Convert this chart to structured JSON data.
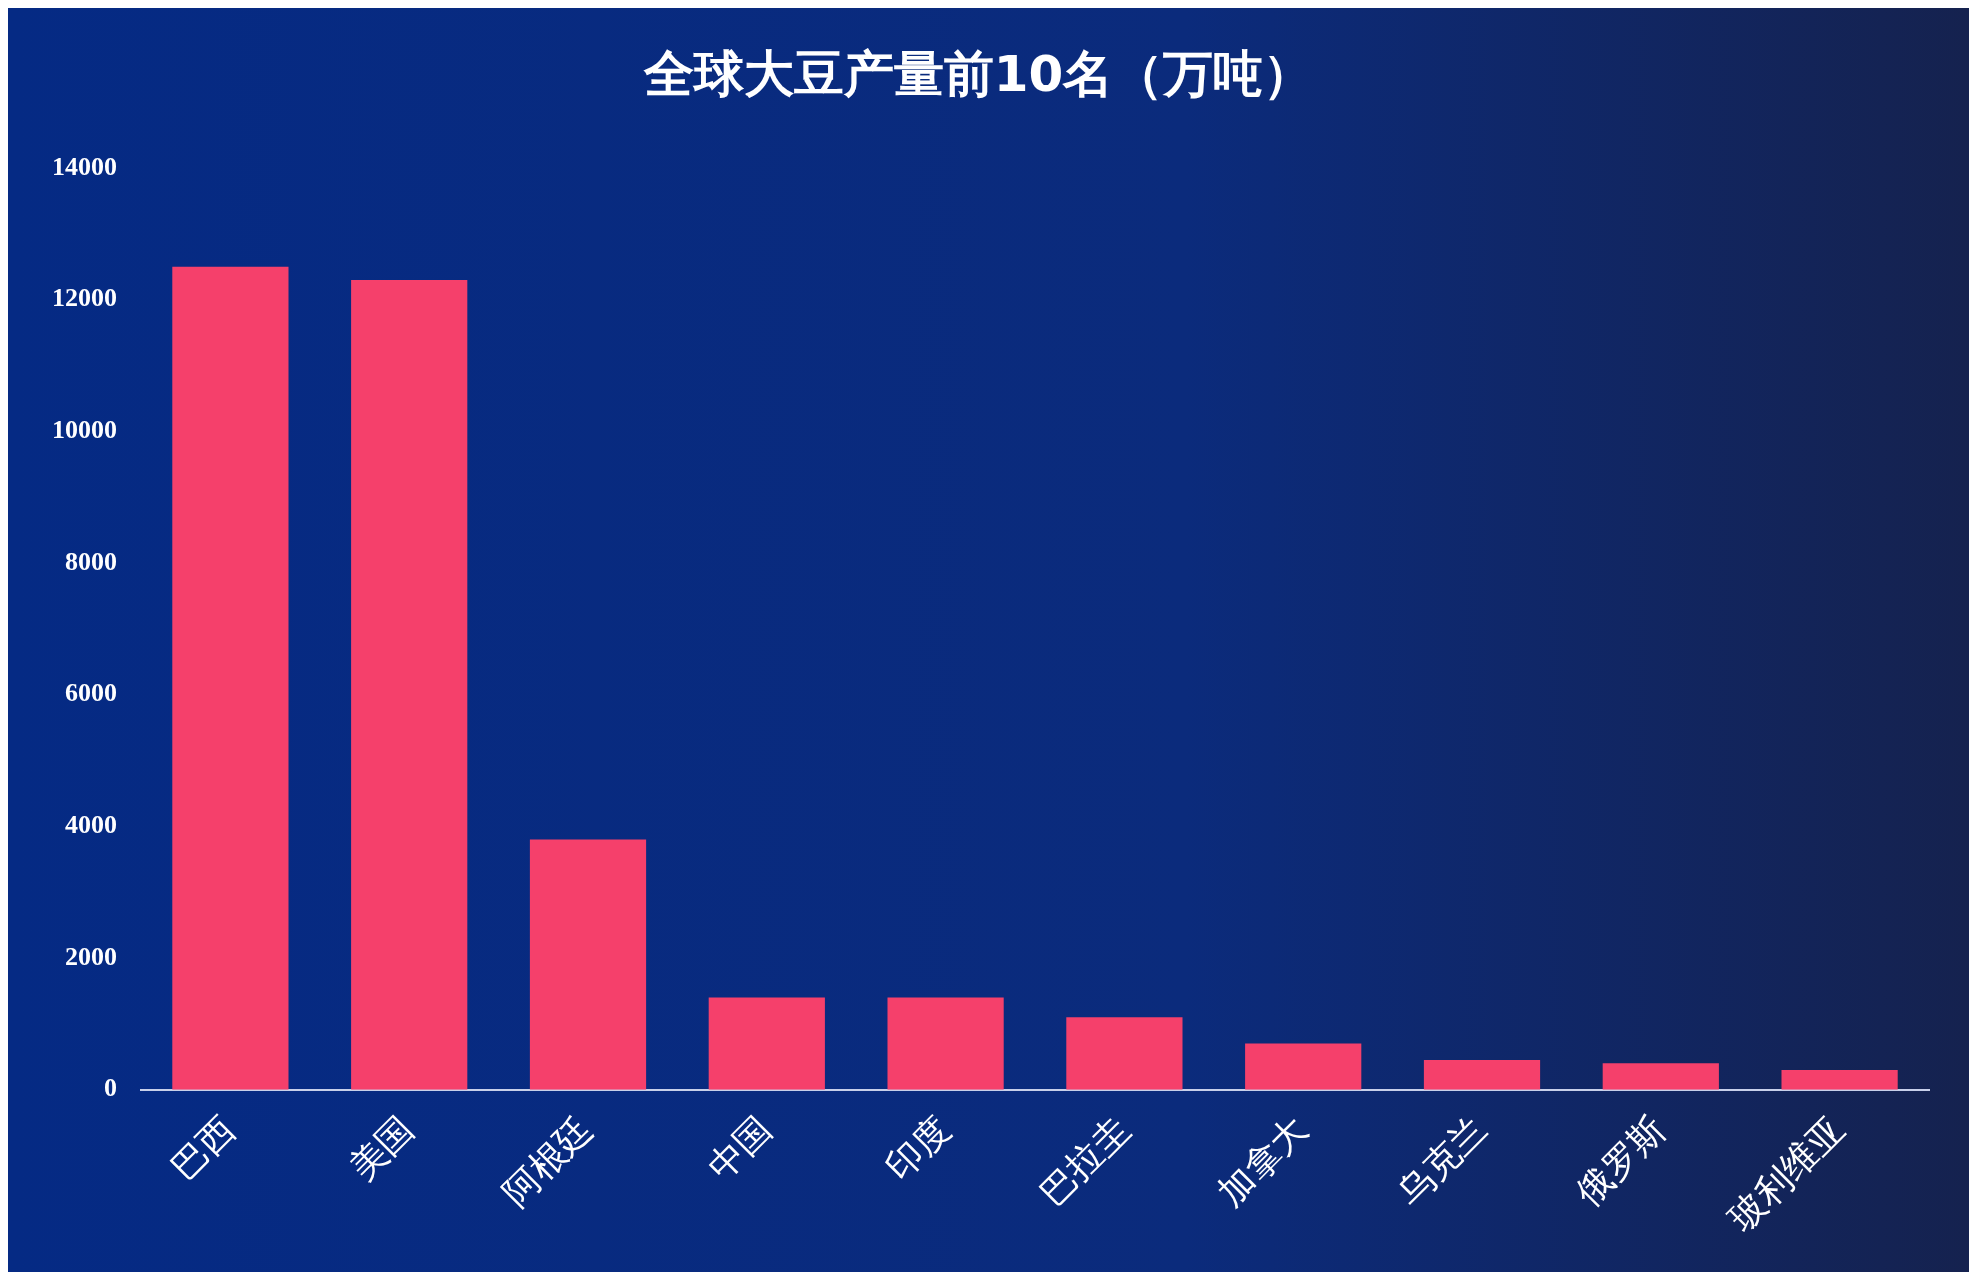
{
  "chart_data": {
    "type": "bar",
    "title": "全球大豆产量前10名（万吨）",
    "categories": [
      "巴西",
      "美国",
      "阿根廷",
      "中国",
      "印度",
      "巴拉圭",
      "加拿大",
      "乌克兰",
      "俄罗斯",
      "玻利维亚"
    ],
    "values": [
      12500,
      12300,
      3800,
      1400,
      1400,
      1100,
      700,
      450,
      400,
      300
    ],
    "color": "#f5406b",
    "ylim": [
      0,
      14000
    ],
    "yticks": [
      0,
      2000,
      4000,
      6000,
      8000,
      10000,
      12000,
      14000
    ],
    "grid": false,
    "legend": false
  }
}
